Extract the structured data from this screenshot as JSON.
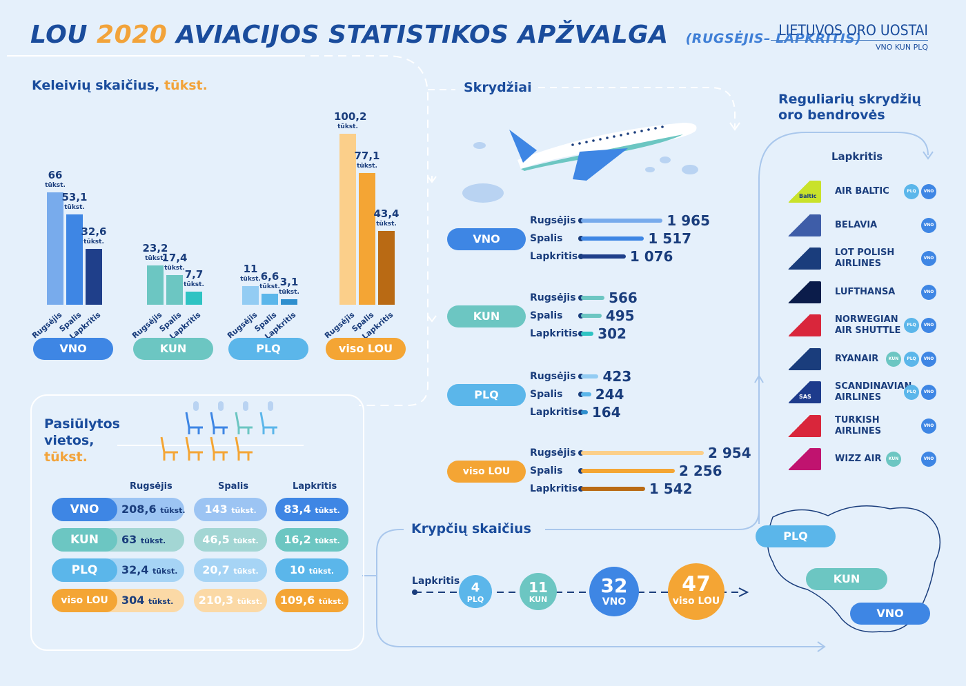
{
  "header": {
    "title_a": "LOU",
    "title_year": "2020",
    "title_b": "AVIACIJOS STATISTIKOS APŽVALGA",
    "subtitle": "(RUGSĖJIS– LAPKRITIS)",
    "logo_name": "LIETUVOS ORO UOSTAI",
    "logo_codes": "VNO KUN PLQ"
  },
  "colors": {
    "vno": "#3e86e4",
    "kun": "#6cc6c2",
    "plq": "#5bb6ea",
    "lou": "#f4a534",
    "navy": "#1a3d7c"
  },
  "passengers": {
    "title": "Keleivių skaičius,",
    "title_unit": "tūkst.",
    "unit": "tūkst.",
    "months": [
      "Rugsėjis",
      "Spalis",
      "Lapkritis"
    ]
  },
  "seats": {
    "title_1": "Pasiūlytos",
    "title_2": "vietos,",
    "title_unit": "tūkst.",
    "months": [
      "Rugsėjis",
      "Spalis",
      "Lapkritis"
    ],
    "unit": "tūkst.",
    "rows": [
      {
        "airport": "VNO",
        "values": [
          "208,6",
          "143",
          "83,4"
        ]
      },
      {
        "airport": "KUN",
        "values": [
          "63",
          "46,5",
          "16,2"
        ]
      },
      {
        "airport": "PLQ",
        "values": [
          "32,4",
          "20,7",
          "10"
        ]
      },
      {
        "airport": "viso LOU",
        "values": [
          "304",
          "210,3",
          "109,6"
        ]
      }
    ]
  },
  "flights": {
    "title": "Skrydžiai",
    "months": [
      "Rugsėjis",
      "Spalis",
      "Lapkritis"
    ]
  },
  "airlines": {
    "title_1": "Reguliarių skrydžių",
    "title_2": "oro bendrovės",
    "month": "Lapkritis",
    "list": [
      {
        "name_1": "AIR BALTIC",
        "name_2": "",
        "airports": [
          "PLQ",
          "VNO"
        ],
        "logo_text": "Baltic"
      },
      {
        "name_1": "BELAVIA",
        "name_2": "",
        "airports": [
          "VNO"
        ]
      },
      {
        "name_1": "LOT POLISH",
        "name_2": "AIRLINES",
        "airports": [
          "VNO"
        ]
      },
      {
        "name_1": "LUFTHANSA",
        "name_2": "",
        "airports": [
          "VNO"
        ]
      },
      {
        "name_1": "NORWEGIAN",
        "name_2": "AIR SHUTTLE",
        "airports": [
          "PLQ",
          "VNO"
        ]
      },
      {
        "name_1": "RYANAIR",
        "name_2": "",
        "airports": [
          "KUN",
          "PLQ",
          "VNO"
        ]
      },
      {
        "name_1": "SCANDINAVIAN",
        "name_2": "AIRLINES",
        "airports": [
          "PLQ",
          "VNO"
        ],
        "logo_text": "SAS"
      },
      {
        "name_1": "TURKISH",
        "name_2": "AIRLINES",
        "airports": [
          "VNO"
        ]
      },
      {
        "name_1": "WIZZ AIR",
        "name_2": "",
        "airports": [
          "KUN",
          "VNO"
        ]
      }
    ]
  },
  "destinations": {
    "title": "Krypčių skaičius",
    "month": "Lapkritis",
    "items": [
      {
        "value": "4",
        "label": "PLQ"
      },
      {
        "value": "11",
        "label": "KUN"
      },
      {
        "value": "32",
        "label": "VNO"
      },
      {
        "value": "47",
        "label": "viso LOU"
      }
    ]
  },
  "map": {
    "labels": [
      "PLQ",
      "KUN",
      "VNO"
    ]
  },
  "chart_data": [
    {
      "type": "bar",
      "title": "Keleivių skaičius, tūkst.",
      "categories": [
        "Rugsėjis",
        "Spalis",
        "Lapkritis"
      ],
      "series": [
        {
          "name": "VNO",
          "values": [
            66,
            53.1,
            32.6
          ],
          "labels": [
            "66",
            "53,1",
            "32,6"
          ]
        },
        {
          "name": "KUN",
          "values": [
            23.2,
            17.4,
            7.7
          ],
          "labels": [
            "23,2",
            "17,4",
            "7,7"
          ]
        },
        {
          "name": "PLQ",
          "values": [
            11,
            6.6,
            3.1
          ],
          "labels": [
            "11",
            "6,6",
            "3,1"
          ]
        },
        {
          "name": "viso LOU",
          "values": [
            100.2,
            77.1,
            43.4
          ],
          "labels": [
            "100,2",
            "77,1",
            "43,4"
          ]
        }
      ],
      "ylim": [
        0,
        100.2
      ]
    },
    {
      "type": "bar",
      "title": "Skrydžiai",
      "categories": [
        "Rugsėjis",
        "Spalis",
        "Lapkritis"
      ],
      "series": [
        {
          "name": "VNO",
          "values": [
            1965,
            1517,
            1076
          ],
          "labels": [
            "1 965",
            "1 517",
            "1 076"
          ]
        },
        {
          "name": "KUN",
          "values": [
            566,
            495,
            302
          ],
          "labels": [
            "566",
            "495",
            "302"
          ]
        },
        {
          "name": "PLQ",
          "values": [
            423,
            244,
            164
          ],
          "labels": [
            "423",
            "244",
            "164"
          ]
        },
        {
          "name": "viso LOU",
          "values": [
            2954,
            2256,
            1542
          ],
          "labels": [
            "2 954",
            "2 256",
            "1 542"
          ]
        }
      ]
    }
  ]
}
